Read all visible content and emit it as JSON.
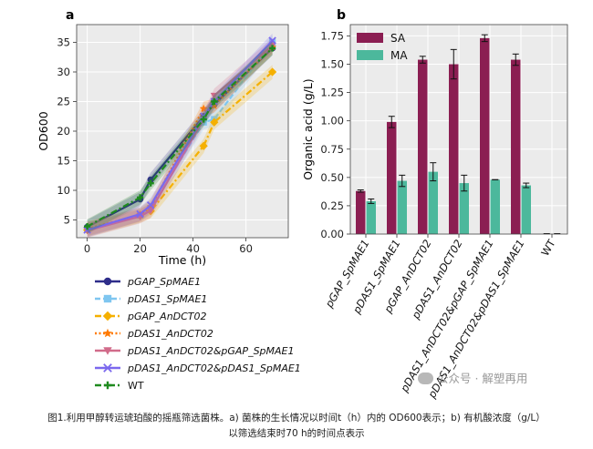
{
  "chart_data": [
    {
      "type": "line",
      "panel_label": "a",
      "xlabel": "Time (h)",
      "ylabel": "OD600",
      "xlim": [
        -4,
        76
      ],
      "ylim": [
        2,
        38
      ],
      "xticks": [
        0,
        20,
        40,
        60
      ],
      "yticks": [
        5,
        10,
        15,
        20,
        25,
        30,
        35
      ],
      "grid": true,
      "legend_position": "below",
      "series": [
        {
          "name": "pGAP_SpMAE1",
          "color": "#2e2d8a",
          "marker": "circle",
          "dash": "solid",
          "x": [
            0,
            20,
            24,
            44,
            48,
            70
          ],
          "y": [
            3.8,
            8.5,
            11.8,
            22.5,
            24.5,
            34.0
          ]
        },
        {
          "name": "pDAS1_SpMAE1",
          "color": "#7fc6f0",
          "marker": "square",
          "dash": "dashed",
          "x": [
            0,
            20,
            24,
            44,
            48,
            70
          ],
          "y": [
            3.4,
            5.8,
            7.0,
            21.5,
            22.0,
            35.0
          ]
        },
        {
          "name": "pGAP_AnDCT02",
          "color": "#f5b000",
          "marker": "diamond",
          "dash": "dashdot",
          "x": [
            0,
            20,
            24,
            44,
            48,
            70
          ],
          "y": [
            3.3,
            5.7,
            6.5,
            17.5,
            21.5,
            30.0
          ]
        },
        {
          "name": "pDAS1_AnDCT02",
          "color": "#ff7a00",
          "marker": "star",
          "dash": "dotted",
          "x": [
            0,
            20,
            24,
            44,
            48,
            70
          ],
          "y": [
            3.5,
            5.9,
            7.2,
            23.8,
            24.3,
            34.2
          ]
        },
        {
          "name": "pDAS1_AnDCT02&pGAP_SpMAE1",
          "color": "#d16b8a",
          "marker": "triangle-down",
          "dash": "solid",
          "x": [
            0,
            20,
            24,
            44,
            48,
            70
          ],
          "y": [
            3.2,
            5.6,
            6.6,
            22.0,
            26.0,
            34.5
          ]
        },
        {
          "name": "pDAS1_AnDCT02&pDAS1_SpMAE1",
          "color": "#7b68ee",
          "marker": "x",
          "dash": "solid",
          "x": [
            0,
            20,
            24,
            44,
            48,
            70
          ],
          "y": [
            3.3,
            6.0,
            7.5,
            22.5,
            25.0,
            35.3
          ]
        },
        {
          "name": "WT",
          "color": "#1e8a1e",
          "marker": "plus",
          "dash": "dashdot",
          "x": [
            0,
            20,
            24,
            44,
            48,
            70
          ],
          "y": [
            3.9,
            8.8,
            11.2,
            22.0,
            25.0,
            34.0
          ]
        }
      ]
    },
    {
      "type": "bar",
      "panel_label": "b",
      "xlabel": "",
      "ylabel": "Organic acid (g/L)",
      "ylim": [
        0,
        1.85
      ],
      "yticks": [
        "0.00",
        "0.25",
        "0.50",
        "0.75",
        "1.00",
        "1.25",
        "1.50",
        "1.75"
      ],
      "grid": true,
      "legend_position": "top-left",
      "categories": [
        "pGAP_SpMAE1",
        "pDAS1_SpMAE1",
        "pGAP_AnDCT02",
        "pDAS1_AnDCT02",
        "pDAS1_AnDCT02&pGAP_SpMAE1",
        "pDAS1_AnDCT02&pDAS1_SpMAE1",
        "WT"
      ],
      "series": [
        {
          "name": "SA",
          "color": "#8b1e52",
          "values": [
            0.38,
            0.99,
            1.54,
            1.5,
            1.73,
            1.54,
            0.0
          ],
          "errors": [
            0.01,
            0.05,
            0.03,
            0.13,
            0.03,
            0.05,
            0.0
          ]
        },
        {
          "name": "MA",
          "color": "#4cb89c",
          "values": [
            0.29,
            0.47,
            0.55,
            0.45,
            0.48,
            0.43,
            0.0
          ],
          "errors": [
            0.02,
            0.05,
            0.08,
            0.07,
            0.0,
            0.02,
            0.0
          ]
        }
      ]
    }
  ],
  "watermark": {
    "text": "公众号 · 解塑再用",
    "icon": "wechat-icon"
  },
  "caption": {
    "line1": "图1.利用甲醇转运琥珀酸的摇瓶筛选菌株。a) 菌株的生长情况以时间t（h）内的 OD600表示；b) 有机酸浓度（g/L）",
    "line2": "以筛选结束时70 h的时间点表示"
  }
}
